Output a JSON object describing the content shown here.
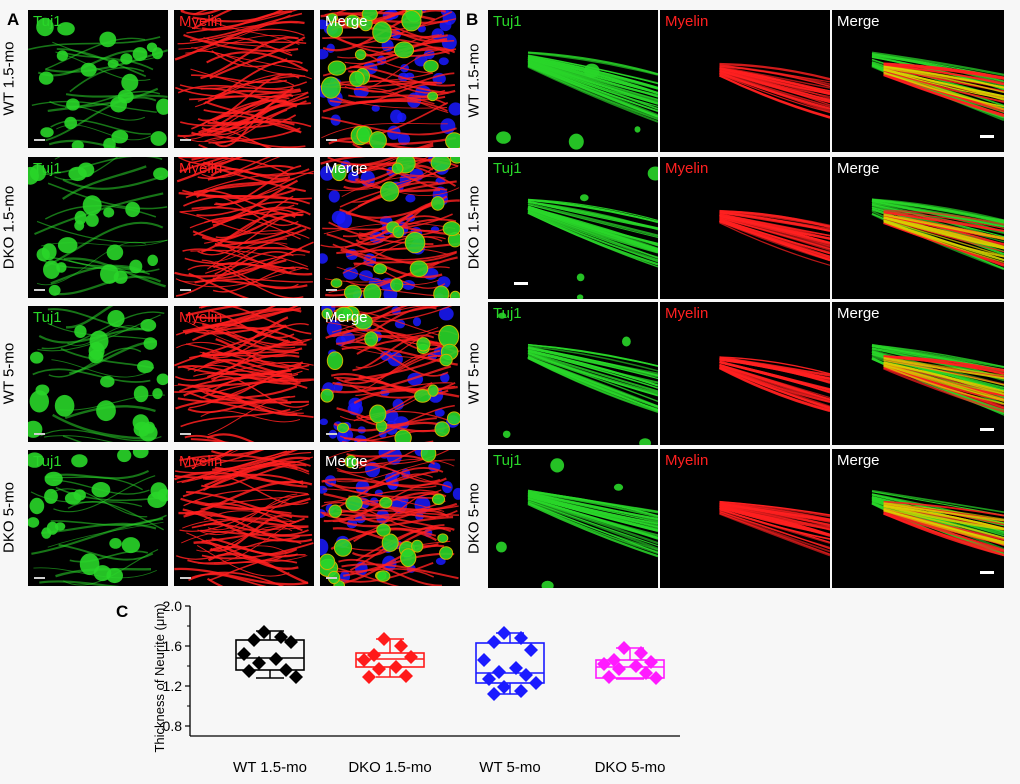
{
  "panels": {
    "A": {
      "letter": "A"
    },
    "B": {
      "letter": "B"
    },
    "C": {
      "letter": "C"
    }
  },
  "row_labels": [
    "WT 1.5-mo",
    "DKO 1.5-mo",
    "WT 5-mo",
    "DKO 5-mo"
  ],
  "channel_labels": [
    "Tuj1",
    "Myelin",
    "Merge"
  ],
  "colors": {
    "tuj1": "#29d629",
    "myelin": "#ff2020",
    "merge_text": "#ffffff",
    "dapi": "#1a1aff"
  },
  "chart_data": {
    "type": "box",
    "title": "",
    "xlabel": "",
    "ylabel": "Thickness of Neurite (μm)",
    "ylim": [
      0.7,
      2.0
    ],
    "yticks": [
      "0.8",
      "1.2",
      "1.6",
      "2.0"
    ],
    "grid": false,
    "categories": [
      "WT 1.5-mo",
      "DKO 1.5-mo",
      "WT 5-mo",
      "DKO 5-mo"
    ],
    "series": [
      {
        "color": "#000000",
        "marker": "diamond",
        "box": {
          "min": 1.28,
          "q1": 1.36,
          "median": 1.48,
          "q3": 1.66,
          "max": 1.75
        },
        "points": [
          1.74,
          1.69,
          1.66,
          1.64,
          1.52,
          1.47,
          1.43,
          1.36,
          1.35,
          1.29
        ]
      },
      {
        "color": "#ff1a1a",
        "marker": "diamond",
        "box": {
          "min": 1.29,
          "q1": 1.39,
          "median": 1.47,
          "q3": 1.53,
          "max": 1.67
        },
        "points": [
          1.67,
          1.6,
          1.51,
          1.49,
          1.46,
          1.39,
          1.37,
          1.3,
          1.29
        ]
      },
      {
        "color": "#1a1aff",
        "marker": "diamond",
        "box": {
          "min": 1.12,
          "q1": 1.23,
          "median": 1.33,
          "q3": 1.63,
          "max": 1.73
        },
        "points": [
          1.73,
          1.68,
          1.64,
          1.56,
          1.46,
          1.38,
          1.34,
          1.31,
          1.27,
          1.23,
          1.19,
          1.15,
          1.12
        ]
      },
      {
        "color": "#ff1aff",
        "marker": "diamond",
        "box": {
          "min": 1.27,
          "q1": 1.28,
          "median": 1.39,
          "q3": 1.46,
          "max": 1.58
        },
        "points": [
          1.58,
          1.53,
          1.46,
          1.44,
          1.42,
          1.4,
          1.37,
          1.33,
          1.29,
          1.28
        ]
      }
    ]
  }
}
